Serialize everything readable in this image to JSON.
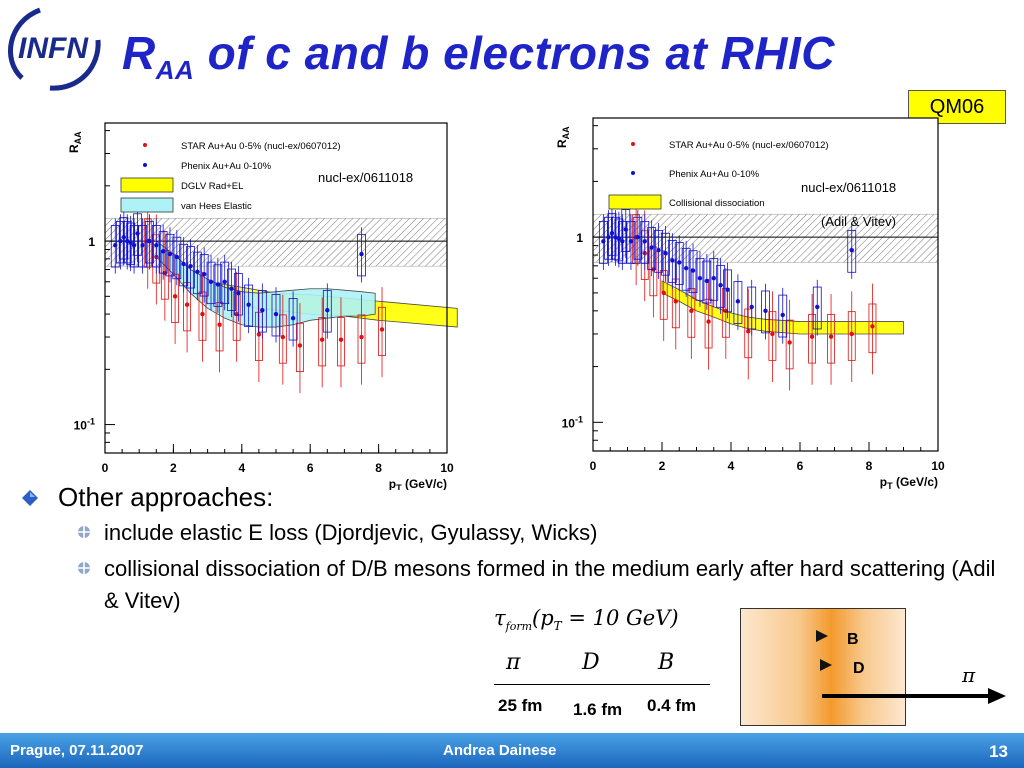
{
  "logo": {
    "text": "INFN"
  },
  "title": {
    "main": "R",
    "sub": "AA",
    "rest": " of c and b electrons at RHIC"
  },
  "badge": "QM06",
  "chart_data": [
    {
      "type": "scatter",
      "ylabel_main": "R",
      "ylabel_sub": "AA",
      "xlabel_main": "p",
      "xlabel_sub": "T",
      "xlabel_rest": " (GeV/c)",
      "xlim": [
        0,
        10
      ],
      "ylim": [
        0.07,
        4.4
      ],
      "yscale": "log",
      "xticks": [
        "0",
        "2",
        "4",
        "6",
        "8",
        "10"
      ],
      "yticks": [
        {
          "v": 1,
          "t": "1"
        },
        {
          "v": 0.1,
          "t": "10",
          "sup": "-1"
        }
      ],
      "annotation": [
        "nucl-ex/0611018"
      ],
      "legend": [
        {
          "kind": "dot",
          "color": "#e01010",
          "label": "STAR Au+Au 0-5% (nucl-ex/0607012)"
        },
        {
          "kind": "dot",
          "color": "#1010d0",
          "label": "Phenix Au+Au  0-10%"
        },
        {
          "kind": "band",
          "color": "#ffff00",
          "label": "DGLV Rad+EL"
        },
        {
          "kind": "band",
          "color": "#aef2f8",
          "label": "van Hees Elastic"
        }
      ],
      "norm_band": [
        0.73,
        1.33
      ],
      "series": [
        {
          "name": "STAR Au+Au 0-5% (nucl-ex/0607012)",
          "color": "#e01010",
          "x": [
            1.25,
            1.5,
            1.75,
            2.05,
            2.4,
            2.85,
            3.35,
            3.85,
            4.5,
            5.2,
            5.7,
            6.35,
            6.9,
            7.5,
            8.1
          ],
          "y": [
            1.0,
            0.82,
            0.67,
            0.5,
            0.45,
            0.4,
            0.35,
            0.4,
            0.31,
            0.3,
            0.27,
            0.29,
            0.29,
            0.3,
            0.33
          ]
        },
        {
          "name": "Phenix Au+Au  0-10%",
          "color": "#1010d0",
          "x": [
            0.3,
            0.45,
            0.55,
            0.65,
            0.75,
            0.85,
            0.95,
            1.1,
            1.3,
            1.5,
            1.7,
            1.9,
            2.1,
            2.3,
            2.5,
            2.7,
            2.9,
            3.1,
            3.3,
            3.5,
            3.7,
            3.9,
            4.2,
            4.6,
            5.0,
            5.5,
            6.5,
            7.5
          ],
          "y": [
            0.95,
            1.0,
            1.05,
            1.0,
            0.98,
            0.95,
            1.1,
            0.95,
            1.0,
            0.95,
            0.88,
            0.85,
            0.82,
            0.75,
            0.73,
            0.68,
            0.66,
            0.6,
            0.58,
            0.6,
            0.55,
            0.52,
            0.45,
            0.42,
            0.4,
            0.38,
            0.42,
            0.85
          ]
        }
      ],
      "bands": [
        {
          "name": "DGLV Rad+EL",
          "color": "#ffff00",
          "x": [
            3,
            4,
            5,
            6,
            7,
            8,
            10.3
          ],
          "lo": [
            0.49,
            0.44,
            0.42,
            0.4,
            0.39,
            0.37,
            0.34
          ],
          "hi": [
            0.6,
            0.56,
            0.52,
            0.51,
            0.49,
            0.47,
            0.43
          ]
        },
        {
          "name": "van Hees Elastic",
          "color": "#aef2f8",
          "x": [
            1.5,
            2,
            2.5,
            3,
            3.5,
            4,
            4.5,
            5,
            5.5,
            6,
            6.5,
            7,
            7.5,
            7.9
          ],
          "lo": [
            0.82,
            0.66,
            0.52,
            0.43,
            0.38,
            0.35,
            0.34,
            0.34,
            0.35,
            0.37,
            0.38,
            0.39,
            0.39,
            0.4
          ],
          "hi": [
            1.0,
            0.85,
            0.7,
            0.62,
            0.56,
            0.53,
            0.52,
            0.53,
            0.54,
            0.55,
            0.55,
            0.54,
            0.53,
            0.52
          ]
        }
      ]
    },
    {
      "type": "scatter",
      "ylabel_main": "R",
      "ylabel_sub": "AA",
      "xlabel_main": "p",
      "xlabel_sub": "T",
      "xlabel_rest": " (GeV/c)",
      "xlim": [
        0,
        10
      ],
      "ylim": [
        0.07,
        4.4
      ],
      "yscale": "log",
      "xticks": [
        "0",
        "2",
        "4",
        "6",
        "8",
        "10"
      ],
      "yticks": [
        {
          "v": 1,
          "t": "1"
        },
        {
          "v": 0.1,
          "t": "10",
          "sup": "-1"
        }
      ],
      "annotation": [
        "nucl-ex/0611018",
        "(Adil & Vitev)"
      ],
      "legend": [
        {
          "kind": "dot",
          "color": "#e01010",
          "label": "STAR Au+Au 0-5% (nucl-ex/0607012)"
        },
        {
          "kind": "dot",
          "color": "#1010d0",
          "label": "Phenix Au+Au  0-10%"
        },
        {
          "kind": "band",
          "color": "#ffff00",
          "label": "Collisional dissociation"
        }
      ],
      "norm_band": [
        0.73,
        1.33
      ],
      "series": [
        {
          "name": "STAR Au+Au 0-5% (nucl-ex/0607012)",
          "color": "#e01010",
          "x": [
            1.25,
            1.5,
            1.75,
            2.05,
            2.4,
            2.85,
            3.35,
            3.85,
            4.5,
            5.2,
            5.7,
            6.35,
            6.9,
            7.5,
            8.1
          ],
          "y": [
            1.0,
            0.82,
            0.67,
            0.5,
            0.45,
            0.4,
            0.35,
            0.4,
            0.31,
            0.3,
            0.27,
            0.29,
            0.29,
            0.3,
            0.33
          ]
        },
        {
          "name": "Phenix Au+Au  0-10%",
          "color": "#1010d0",
          "x": [
            0.3,
            0.45,
            0.55,
            0.65,
            0.75,
            0.85,
            0.95,
            1.1,
            1.3,
            1.5,
            1.7,
            1.9,
            2.1,
            2.3,
            2.5,
            2.7,
            2.9,
            3.1,
            3.3,
            3.5,
            3.7,
            3.9,
            4.2,
            4.6,
            5.0,
            5.5,
            6.5,
            7.5
          ],
          "y": [
            0.95,
            1.0,
            1.05,
            1.0,
            0.98,
            0.95,
            1.1,
            0.95,
            1.0,
            0.95,
            0.88,
            0.85,
            0.82,
            0.75,
            0.73,
            0.68,
            0.66,
            0.6,
            0.58,
            0.6,
            0.55,
            0.52,
            0.45,
            0.42,
            0.4,
            0.38,
            0.42,
            0.85
          ]
        }
      ],
      "bands": [
        {
          "name": "Collisional dissociation",
          "color": "#ffff00",
          "x": [
            2,
            2.5,
            3,
            3.5,
            4,
            4.5,
            5,
            6,
            7,
            8,
            9
          ],
          "lo": [
            0.5,
            0.45,
            0.4,
            0.37,
            0.34,
            0.32,
            0.31,
            0.3,
            0.3,
            0.3,
            0.3
          ],
          "hi": [
            0.58,
            0.52,
            0.46,
            0.42,
            0.39,
            0.37,
            0.36,
            0.35,
            0.35,
            0.35,
            0.35
          ]
        }
      ]
    }
  ],
  "bullets": {
    "main": "Other approaches:",
    "sub1": "include elastic E loss (Djordjevic, Gyulassy, Wicks)",
    "sub2": "collisional dissociation of D/B mesons formed in the medium early after hard scattering (Adil & Vitev)"
  },
  "formula": {
    "tau": "τ",
    "tau_sub": "form",
    "cond": "(p",
    "cond_sub": "T",
    "cond_rest": " = 10  GeV)",
    "headers": [
      "π",
      "D",
      "B"
    ],
    "values": [
      "25 fm",
      "1.6 fm",
      "0.4 fm"
    ]
  },
  "diagram": {
    "label_b": "B",
    "label_d": "D",
    "label_pi": "π"
  },
  "footer": {
    "left": "Prague, 07.11.2007",
    "center": "Andrea Dainese",
    "right": "13"
  }
}
